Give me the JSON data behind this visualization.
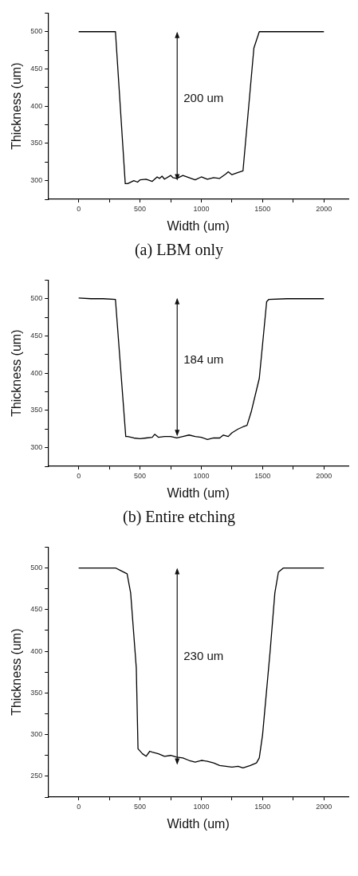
{
  "chart_data": [
    {
      "type": "line",
      "title": "(a) LBM only",
      "xlabel": "Width (um)",
      "ylabel": "Thickness (um)",
      "color": "#000000",
      "x": [
        0,
        300,
        380,
        400,
        450,
        480,
        500,
        550,
        600,
        640,
        660,
        680,
        700,
        750,
        770,
        800,
        850,
        900,
        950,
        1000,
        1050,
        1100,
        1150,
        1200,
        1220,
        1250,
        1300,
        1340,
        1429,
        1473,
        2000
      ],
      "values": [
        500,
        500,
        296,
        296,
        300,
        298,
        301,
        302,
        299,
        305,
        303,
        306,
        302,
        307,
        304,
        303,
        307,
        304,
        301,
        305,
        302,
        304,
        303,
        309,
        312,
        308,
        311,
        313,
        478,
        500,
        500
      ],
      "xlim": [
        -250,
        2200
      ],
      "xticks": [
        0,
        {
          "value": 250,
          "label": null
        },
        500,
        {
          "value": 750,
          "label": null
        },
        1000,
        {
          "value": 1250,
          "label": null
        },
        1500,
        {
          "value": 1750,
          "label": null
        },
        2000
      ],
      "ylim": [
        275,
        525
      ],
      "yticks": [
        {
          "value": 275,
          "label": null
        },
        300,
        {
          "value": 325,
          "label": null
        },
        350,
        {
          "value": 375,
          "label": null
        },
        400,
        {
          "value": 425,
          "label": null
        },
        450,
        {
          "value": 475,
          "label": null
        },
        500,
        {
          "value": 525,
          "label": null
        }
      ],
      "annotations": [
        "200 um"
      ]
    },
    {
      "type": "line",
      "title": "(b) Entire etching",
      "xlabel": "Width (um)",
      "ylabel": "Thickness (um)",
      "color": "#000000",
      "x": [
        0,
        100,
        200,
        300,
        384,
        400,
        450,
        500,
        550,
        600,
        620,
        650,
        700,
        750,
        800,
        850,
        900,
        950,
        1000,
        1050,
        1100,
        1150,
        1180,
        1220,
        1250,
        1300,
        1340,
        1373,
        1407,
        1451,
        1473,
        1507,
        1533,
        1550,
        1700,
        1800,
        2000
      ],
      "values": [
        501,
        500,
        500,
        499,
        315,
        315,
        313,
        312,
        313,
        314,
        318,
        314,
        315,
        315,
        313,
        315,
        317,
        315,
        314,
        311,
        313,
        313,
        317,
        315,
        320,
        325,
        328,
        330,
        348,
        378,
        393,
        451,
        496,
        499,
        500,
        500,
        500
      ],
      "xlim": [
        -250,
        2200
      ],
      "xticks": [
        0,
        {
          "value": 250,
          "label": null
        },
        500,
        {
          "value": 750,
          "label": null
        },
        1000,
        {
          "value": 1250,
          "label": null
        },
        1500,
        {
          "value": 1750,
          "label": null
        },
        2000
      ],
      "ylim": [
        275,
        525
      ],
      "yticks": [
        {
          "value": 275,
          "label": null
        },
        300,
        {
          "value": 325,
          "label": null
        },
        350,
        {
          "value": 375,
          "label": null
        },
        400,
        {
          "value": 425,
          "label": null
        },
        450,
        {
          "value": 475,
          "label": null
        },
        500,
        {
          "value": 525,
          "label": null
        }
      ],
      "annotations": [
        "184 um"
      ]
    },
    {
      "type": "line",
      "xlabel": "Width (um)",
      "ylabel": "Thickness (um)",
      "color": "#000000",
      "x": [
        0,
        300,
        340,
        395,
        424,
        470,
        484,
        520,
        550,
        580,
        600,
        650,
        700,
        750,
        800,
        850,
        900,
        950,
        1000,
        1050,
        1100,
        1150,
        1200,
        1250,
        1300,
        1340,
        1400,
        1450,
        1473,
        1500,
        1562,
        1600,
        1629,
        1670,
        2000
      ],
      "values": [
        500,
        500,
        497,
        493,
        470,
        380,
        283,
        277,
        274,
        280,
        279,
        277,
        274,
        275,
        273,
        272,
        269,
        267,
        269,
        268,
        266,
        263,
        262,
        261,
        262,
        260,
        263,
        266,
        272,
        300,
        401,
        470,
        495,
        500,
        500
      ],
      "xlim": [
        -250,
        2200
      ],
      "xticks": [
        0,
        {
          "value": 250,
          "label": null
        },
        500,
        {
          "value": 750,
          "label": null
        },
        1000,
        {
          "value": 1250,
          "label": null
        },
        1500,
        {
          "value": 1750,
          "label": null
        },
        2000
      ],
      "ylim": [
        225,
        525
      ],
      "yticks": [
        {
          "value": 225,
          "label": null
        },
        250,
        {
          "value": 275,
          "label": null
        },
        300,
        {
          "value": 325,
          "label": null
        },
        350,
        {
          "value": 375,
          "label": null
        },
        400,
        {
          "value": 425,
          "label": null
        },
        450,
        {
          "value": 475,
          "label": null
        },
        500,
        {
          "value": 525,
          "label": null
        }
      ],
      "annotations": [
        "230 um"
      ]
    }
  ]
}
